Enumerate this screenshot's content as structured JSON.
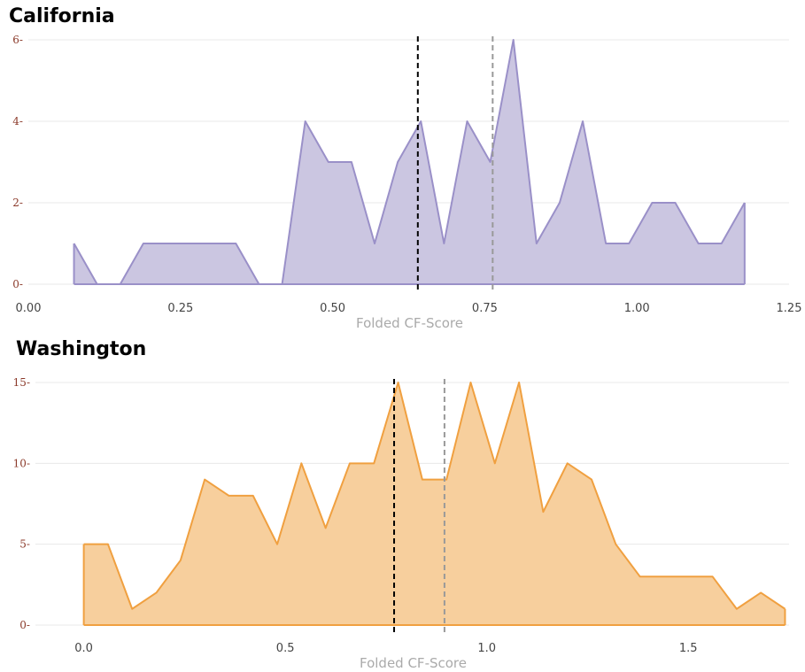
{
  "chart_data": [
    {
      "type": "area",
      "title": "California",
      "xlabel": "Folded CF-Score",
      "ylabel": "",
      "xlim": [
        0.0,
        1.25
      ],
      "ylim": [
        0,
        6
      ],
      "xticks": [
        "0.00",
        "0.25",
        "0.50",
        "0.75",
        "1.00",
        "1.25"
      ],
      "xtick_values": [
        0.0,
        0.25,
        0.5,
        0.75,
        1.0,
        1.25
      ],
      "yticks": [
        "0",
        "2",
        "4",
        "6"
      ],
      "ytick_values": [
        0,
        2,
        4,
        6
      ],
      "grid": true,
      "fill_color": "#cbc6e1",
      "line_color": "#9a90c8",
      "series": [
        {
          "x": [
            0.075,
            0.113,
            0.151,
            0.189,
            0.227,
            0.265,
            0.303,
            0.341,
            0.379,
            0.417,
            0.455,
            0.493,
            0.531,
            0.569,
            0.607,
            0.645,
            0.683,
            0.721,
            0.759,
            0.797,
            0.835,
            0.873,
            0.911,
            0.949,
            0.987,
            1.025,
            1.063,
            1.101,
            1.139,
            1.177
          ],
          "values": [
            1,
            0,
            0,
            1,
            1,
            1,
            1,
            1,
            0,
            0,
            4,
            3,
            3,
            1,
            3,
            4,
            1,
            4,
            3,
            6,
            1,
            2,
            4,
            1,
            1,
            2,
            2,
            1,
            1,
            2
          ]
        }
      ],
      "vlines": [
        {
          "x": 0.64,
          "color": "#000000"
        },
        {
          "x": 0.763,
          "color": "#999999"
        }
      ]
    },
    {
      "type": "area",
      "title": "Washington",
      "xlabel": "Folded CF-Score",
      "ylabel": "",
      "xlim": [
        -0.12,
        1.75
      ],
      "ylim": [
        0,
        15
      ],
      "xticks": [
        "0.0",
        "0.5",
        "1.0",
        "1.5"
      ],
      "xtick_values": [
        0.0,
        0.5,
        1.0,
        1.5
      ],
      "yticks": [
        "0",
        "5",
        "10",
        "15"
      ],
      "ytick_values": [
        0,
        5,
        10,
        15
      ],
      "grid": true,
      "fill_color": "#f7cf9d",
      "line_color": "#f0a040",
      "series": [
        {
          "x": [
            0.0,
            0.06,
            0.12,
            0.18,
            0.24,
            0.3,
            0.36,
            0.42,
            0.48,
            0.54,
            0.6,
            0.66,
            0.72,
            0.78,
            0.84,
            0.9,
            0.96,
            1.02,
            1.08,
            1.14,
            1.2,
            1.26,
            1.32,
            1.38,
            1.44,
            1.5,
            1.56,
            1.62,
            1.68,
            1.74
          ],
          "values": [
            5,
            5,
            1,
            2,
            4,
            9,
            8,
            8,
            5,
            10,
            6,
            10,
            10,
            15,
            9,
            9,
            15,
            10,
            15,
            7,
            10,
            9,
            5,
            3,
            3,
            3,
            3,
            1,
            2,
            1
          ]
        }
      ],
      "vlines": [
        {
          "x": 0.77,
          "color": "#000000"
        },
        {
          "x": 0.895,
          "color": "#999999"
        }
      ]
    }
  ]
}
